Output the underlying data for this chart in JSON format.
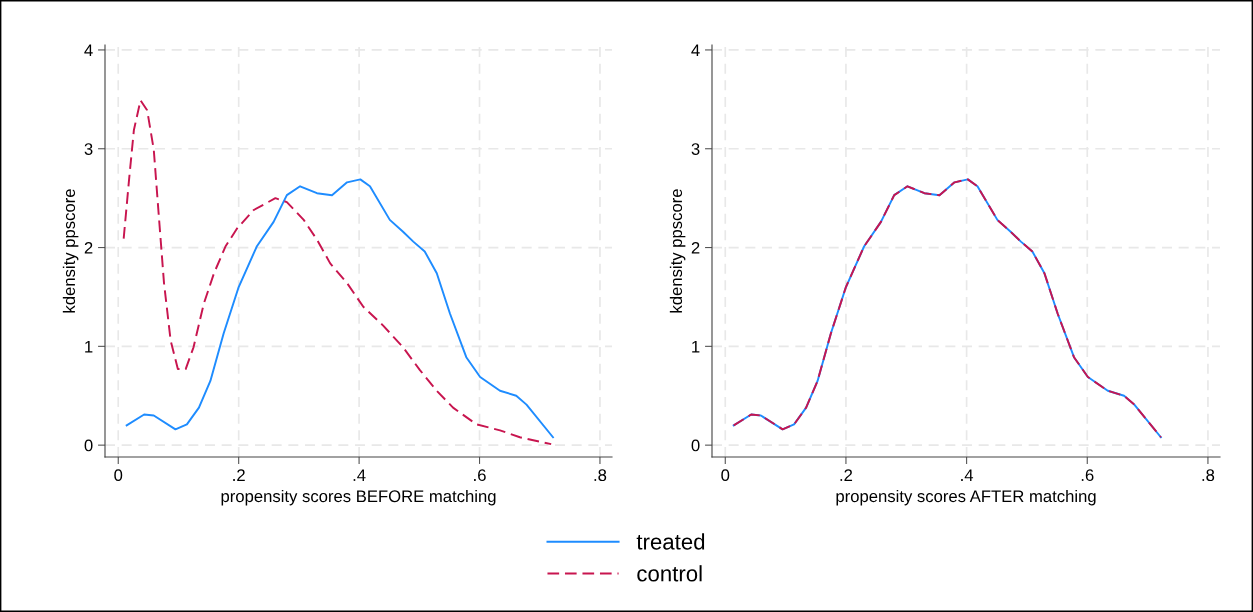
{
  "chart_data": [
    {
      "type": "line",
      "xlabel": "propensity scores BEFORE matching",
      "ylabel": "kdensity ppscore",
      "xlim": [
        -0.022,
        0.82
      ],
      "ylim": [
        -0.12,
        4.05
      ],
      "xticks": [
        0,
        {
          "value": 0.2,
          "label": ".2"
        },
        {
          "value": 0.4,
          "label": ".4"
        },
        {
          "value": 0.6,
          "label": ".6"
        },
        {
          "value": 0.8,
          "label": ".8"
        }
      ],
      "yticks": [
        0,
        1,
        2,
        3,
        4
      ],
      "grid": true,
      "legend": "bottom",
      "series": [
        {
          "name": "treated",
          "color": "#1e8cff",
          "line_style": "solid",
          "x": [
            0.014,
            0.043,
            0.059,
            0.095,
            0.114,
            0.134,
            0.153,
            0.175,
            0.2,
            0.23,
            0.258,
            0.28,
            0.302,
            0.33,
            0.355,
            0.38,
            0.402,
            0.418,
            0.451,
            0.473,
            0.49,
            0.509,
            0.529,
            0.551,
            0.578,
            0.601,
            0.634,
            0.661,
            0.678,
            0.722
          ],
          "values": [
            0.2,
            0.31,
            0.3,
            0.16,
            0.21,
            0.38,
            0.65,
            1.13,
            1.6,
            2.01,
            2.26,
            2.53,
            2.62,
            2.55,
            2.53,
            2.66,
            2.69,
            2.62,
            2.28,
            2.16,
            2.06,
            1.96,
            1.74,
            1.33,
            0.89,
            0.69,
            0.55,
            0.5,
            0.41,
            0.08
          ]
        },
        {
          "name": "control",
          "color": "#c8154f",
          "line_style": "dashed",
          "x": [
            0.009,
            0.018,
            0.026,
            0.037,
            0.048,
            0.059,
            0.067,
            0.076,
            0.087,
            0.099,
            0.112,
            0.125,
            0.142,
            0.159,
            0.178,
            0.197,
            0.225,
            0.261,
            0.28,
            0.308,
            0.33,
            0.352,
            0.38,
            0.407,
            0.44,
            0.473,
            0.501,
            0.529,
            0.556,
            0.595,
            0.634,
            0.667,
            0.719
          ],
          "values": [
            2.09,
            2.69,
            3.19,
            3.49,
            3.39,
            2.99,
            2.35,
            1.64,
            1.06,
            0.77,
            0.77,
            0.99,
            1.43,
            1.74,
            2.01,
            2.19,
            2.38,
            2.5,
            2.46,
            2.28,
            2.08,
            1.84,
            1.64,
            1.4,
            1.21,
            0.99,
            0.76,
            0.55,
            0.38,
            0.21,
            0.15,
            0.08,
            0.01
          ]
        }
      ]
    },
    {
      "type": "line",
      "xlabel": "propensity scores AFTER matching",
      "ylabel": "kdensity ppscore",
      "xlim": [
        -0.022,
        0.82
      ],
      "ylim": [
        -0.12,
        4.05
      ],
      "xticks": [
        0,
        {
          "value": 0.2,
          "label": ".2"
        },
        {
          "value": 0.4,
          "label": ".4"
        },
        {
          "value": 0.6,
          "label": ".6"
        },
        {
          "value": 0.8,
          "label": ".8"
        }
      ],
      "yticks": [
        0,
        1,
        2,
        3,
        4
      ],
      "grid": true,
      "legend": "bottom",
      "series": [
        {
          "name": "treated",
          "color": "#1e8cff",
          "line_style": "solid",
          "x": [
            0.014,
            0.043,
            0.059,
            0.095,
            0.114,
            0.134,
            0.153,
            0.175,
            0.2,
            0.23,
            0.258,
            0.28,
            0.302,
            0.33,
            0.355,
            0.38,
            0.402,
            0.418,
            0.451,
            0.473,
            0.49,
            0.509,
            0.529,
            0.551,
            0.578,
            0.601,
            0.634,
            0.661,
            0.678,
            0.722
          ],
          "values": [
            0.2,
            0.31,
            0.3,
            0.16,
            0.21,
            0.38,
            0.65,
            1.13,
            1.6,
            2.01,
            2.26,
            2.53,
            2.62,
            2.55,
            2.53,
            2.66,
            2.69,
            2.62,
            2.28,
            2.16,
            2.06,
            1.96,
            1.74,
            1.33,
            0.89,
            0.69,
            0.55,
            0.5,
            0.41,
            0.08
          ]
        },
        {
          "name": "control",
          "color": "#c8154f",
          "line_style": "dashed",
          "x": [
            0.014,
            0.043,
            0.059,
            0.095,
            0.114,
            0.134,
            0.153,
            0.175,
            0.2,
            0.23,
            0.258,
            0.28,
            0.302,
            0.33,
            0.355,
            0.38,
            0.402,
            0.418,
            0.451,
            0.473,
            0.49,
            0.509,
            0.529,
            0.551,
            0.578,
            0.601,
            0.634,
            0.661,
            0.678,
            0.722
          ],
          "values": [
            0.2,
            0.31,
            0.3,
            0.16,
            0.21,
            0.38,
            0.65,
            1.13,
            1.6,
            2.01,
            2.26,
            2.53,
            2.62,
            2.55,
            2.53,
            2.66,
            2.69,
            2.62,
            2.28,
            2.16,
            2.06,
            1.96,
            1.74,
            1.33,
            0.89,
            0.69,
            0.55,
            0.5,
            0.41,
            0.08
          ]
        }
      ]
    }
  ]
}
